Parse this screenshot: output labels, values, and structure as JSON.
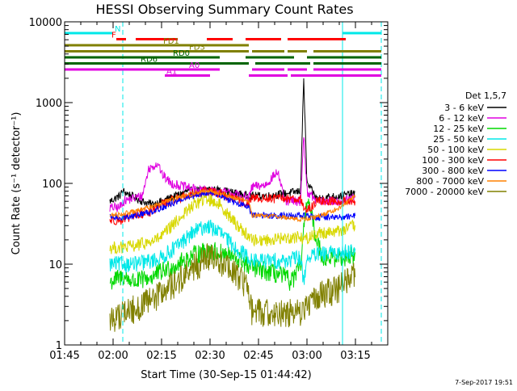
{
  "chart_data": {
    "type": "line",
    "title": "HESSI Observing Summary Count Rates",
    "xlabel": "Start Time (30-Sep-15 01:44:42)",
    "ylabel": "Count Rate (s⁻¹ detector⁻¹)",
    "x_unit": "minutes since 01:45",
    "xlim": [
      0,
      100
    ],
    "ylim": [
      1,
      10000
    ],
    "yscale": "log",
    "x_ticks": [
      {
        "t": 0,
        "label": "01:45"
      },
      {
        "t": 15,
        "label": "02:00"
      },
      {
        "t": 30,
        "label": "02:15"
      },
      {
        "t": 45,
        "label": "02:30"
      },
      {
        "t": 60,
        "label": "02:45"
      },
      {
        "t": 75,
        "label": "03:00"
      },
      {
        "t": 90,
        "label": "03:15"
      }
    ],
    "y_ticks": [
      {
        "v": 1,
        "label": "1"
      },
      {
        "v": 10,
        "label": "10"
      },
      {
        "v": 100,
        "label": "100"
      },
      {
        "v": 1000,
        "label": "1000"
      },
      {
        "v": 10000,
        "label": "10000"
      }
    ],
    "legend_title": "Det 1,5,7",
    "legend_position": "right",
    "footer": "7-Sep-2017 19:51",
    "data_start": 14,
    "data_end": 90,
    "night_boundaries": [
      0,
      18,
      86,
      98
    ],
    "series": [
      {
        "name": "3 - 6 keV",
        "color": "#000000",
        "noise": 0.05,
        "points": [
          [
            14,
            60
          ],
          [
            17,
            70
          ],
          [
            18,
            80
          ],
          [
            24,
            60
          ],
          [
            27,
            55
          ],
          [
            30,
            60
          ],
          [
            38,
            80
          ],
          [
            44,
            85
          ],
          [
            50,
            80
          ],
          [
            57,
            70
          ],
          [
            58,
            70
          ],
          [
            63,
            70
          ],
          [
            68,
            75
          ],
          [
            73,
            80
          ],
          [
            74,
            2000
          ],
          [
            75,
            100
          ],
          [
            78,
            65
          ],
          [
            85,
            70
          ],
          [
            90,
            75
          ]
        ]
      },
      {
        "name": "6 - 12 keV",
        "color": "#e000e0",
        "noise": 0.06,
        "points": [
          [
            14,
            50
          ],
          [
            17,
            50
          ],
          [
            18,
            60
          ],
          [
            24,
            70
          ],
          [
            26,
            150
          ],
          [
            29,
            180
          ],
          [
            30,
            130
          ],
          [
            33,
            100
          ],
          [
            40,
            85
          ],
          [
            46,
            80
          ],
          [
            52,
            75
          ],
          [
            57,
            65
          ],
          [
            58,
            90
          ],
          [
            62,
            95
          ],
          [
            66,
            140
          ],
          [
            68,
            60
          ],
          [
            73,
            60
          ],
          [
            74,
            400
          ],
          [
            75,
            80
          ],
          [
            78,
            60
          ],
          [
            85,
            60
          ],
          [
            90,
            65
          ]
        ]
      },
      {
        "name": "12 - 25 keV",
        "color": "#00d800",
        "noise": 0.12,
        "points": [
          [
            14,
            6
          ],
          [
            18,
            7
          ],
          [
            22,
            6
          ],
          [
            27,
            7
          ],
          [
            30,
            8
          ],
          [
            35,
            10
          ],
          [
            40,
            13
          ],
          [
            45,
            15
          ],
          [
            50,
            13
          ],
          [
            55,
            11
          ],
          [
            57,
            9
          ],
          [
            58,
            9
          ],
          [
            63,
            8
          ],
          [
            68,
            7
          ],
          [
            70,
            6
          ],
          [
            73,
            9
          ],
          [
            74,
            25
          ],
          [
            75,
            70
          ],
          [
            78,
            20
          ],
          [
            80,
            12
          ],
          [
            85,
            12
          ],
          [
            90,
            13
          ]
        ]
      },
      {
        "name": "25 - 50 keV",
        "color": "#00e8e8",
        "noise": 0.1,
        "points": [
          [
            14,
            10
          ],
          [
            18,
            10
          ],
          [
            22,
            10
          ],
          [
            27,
            11
          ],
          [
            30,
            12
          ],
          [
            35,
            17
          ],
          [
            40,
            25
          ],
          [
            44,
            30
          ],
          [
            48,
            25
          ],
          [
            52,
            17
          ],
          [
            57,
            12
          ],
          [
            58,
            11
          ],
          [
            63,
            11
          ],
          [
            68,
            11
          ],
          [
            73,
            12
          ],
          [
            74,
            6
          ],
          [
            75,
            12
          ],
          [
            78,
            13
          ],
          [
            85,
            14
          ],
          [
            90,
            15
          ]
        ]
      },
      {
        "name": "50 - 100 keV",
        "color": "#d8d800",
        "noise": 0.08,
        "points": [
          [
            14,
            16
          ],
          [
            18,
            16
          ],
          [
            22,
            17
          ],
          [
            27,
            19
          ],
          [
            30,
            22
          ],
          [
            35,
            35
          ],
          [
            40,
            55
          ],
          [
            44,
            65
          ],
          [
            48,
            55
          ],
          [
            52,
            35
          ],
          [
            57,
            22
          ],
          [
            58,
            20
          ],
          [
            63,
            20
          ],
          [
            68,
            21
          ],
          [
            73,
            22
          ],
          [
            74,
            20
          ],
          [
            78,
            24
          ],
          [
            85,
            26
          ],
          [
            90,
            30
          ]
        ]
      },
      {
        "name": "100 - 300 keV",
        "color": "#ff0000",
        "noise": 0.06,
        "points": [
          [
            14,
            35
          ],
          [
            18,
            35
          ],
          [
            22,
            40
          ],
          [
            27,
            45
          ],
          [
            30,
            55
          ],
          [
            35,
            65
          ],
          [
            40,
            75
          ],
          [
            44,
            80
          ],
          [
            48,
            75
          ],
          [
            52,
            65
          ],
          [
            57,
            55
          ],
          [
            58,
            65
          ],
          [
            63,
            65
          ],
          [
            68,
            65
          ],
          [
            73,
            65
          ],
          [
            74,
            50
          ],
          [
            75,
            45
          ],
          [
            78,
            60
          ],
          [
            85,
            60
          ],
          [
            90,
            60
          ]
        ]
      },
      {
        "name": "300 - 800 keV",
        "color": "#0000ff",
        "noise": 0.04,
        "points": [
          [
            14,
            38
          ],
          [
            18,
            38
          ],
          [
            22,
            40
          ],
          [
            27,
            45
          ],
          [
            30,
            50
          ],
          [
            35,
            60
          ],
          [
            40,
            70
          ],
          [
            44,
            78
          ],
          [
            48,
            70
          ],
          [
            52,
            60
          ],
          [
            57,
            50
          ],
          [
            58,
            40
          ],
          [
            63,
            40
          ],
          [
            68,
            40
          ],
          [
            73,
            40
          ],
          [
            78,
            38
          ],
          [
            85,
            38
          ],
          [
            90,
            40
          ]
        ]
      },
      {
        "name": "800 - 7000 keV",
        "color": "#ff8000",
        "noise": 0.03,
        "points": [
          [
            14,
            40
          ],
          [
            18,
            42
          ],
          [
            22,
            45
          ],
          [
            27,
            52
          ],
          [
            30,
            58
          ],
          [
            35,
            66
          ],
          [
            40,
            75
          ],
          [
            44,
            82
          ],
          [
            48,
            76
          ],
          [
            52,
            68
          ],
          [
            57,
            60
          ],
          [
            58,
            40
          ],
          [
            63,
            40
          ],
          [
            68,
            38
          ],
          [
            73,
            36
          ],
          [
            78,
            38
          ],
          [
            85,
            50
          ],
          [
            90,
            70
          ]
        ]
      },
      {
        "name": "7000 - 20000 keV",
        "color": "#808000",
        "noise": 0.18,
        "points": [
          [
            14,
            2
          ],
          [
            18,
            2.5
          ],
          [
            22,
            2.8
          ],
          [
            27,
            3.5
          ],
          [
            30,
            4.5
          ],
          [
            35,
            6
          ],
          [
            40,
            9
          ],
          [
            44,
            12
          ],
          [
            48,
            11
          ],
          [
            52,
            8
          ],
          [
            57,
            5
          ],
          [
            58,
            2.5
          ],
          [
            63,
            2.5
          ],
          [
            68,
            2.5
          ],
          [
            73,
            2.5
          ],
          [
            78,
            4
          ],
          [
            85,
            5
          ],
          [
            90,
            8
          ]
        ]
      }
    ],
    "flag_bars": [
      {
        "label": "N",
        "color": "#00e8e8",
        "y_level": 0,
        "segments": [
          [
            0,
            15
          ],
          [
            86,
            98
          ]
        ],
        "label_t": 15
      },
      {
        "label": "F",
        "color": "#ff0000",
        "y_level": 1,
        "segments": [
          [
            16,
            19
          ],
          [
            22,
            35
          ],
          [
            44,
            52
          ],
          [
            56,
            67
          ],
          [
            69,
            87
          ]
        ],
        "label_t": 14
      },
      {
        "label": "FD1",
        "color": "#808000",
        "y_level": 2,
        "segments": [
          [
            0,
            30
          ],
          [
            30,
            57
          ]
        ],
        "label_t": 30
      },
      {
        "label": "FD3",
        "color": "#808000",
        "y_level": 3,
        "segments": [
          [
            0,
            57
          ],
          [
            58,
            68
          ],
          [
            69,
            75
          ],
          [
            77,
            98
          ]
        ],
        "label_t": 38
      },
      {
        "label": "RD0",
        "color": "#006400",
        "y_level": 4,
        "segments": [
          [
            0,
            48
          ],
          [
            56,
            71
          ],
          [
            75,
            98
          ]
        ],
        "label_t": 33
      },
      {
        "label": "RD6",
        "color": "#006400",
        "y_level": 5,
        "segments": [
          [
            0,
            57
          ],
          [
            59,
            76
          ],
          [
            77,
            98
          ]
        ],
        "label_t": 23
      },
      {
        "label": "A0",
        "color": "#e000e0",
        "y_level": 6,
        "segments": [
          [
            0,
            38
          ],
          [
            38,
            48
          ],
          [
            58,
            68
          ],
          [
            69,
            75
          ],
          [
            77,
            98
          ]
        ],
        "label_t": 38
      },
      {
        "label": "A1",
        "color": "#e000e0",
        "y_level": 7,
        "segments": [
          [
            31,
            45
          ],
          [
            57,
            69
          ],
          [
            70,
            98
          ]
        ],
        "label_t": 31
      }
    ]
  }
}
